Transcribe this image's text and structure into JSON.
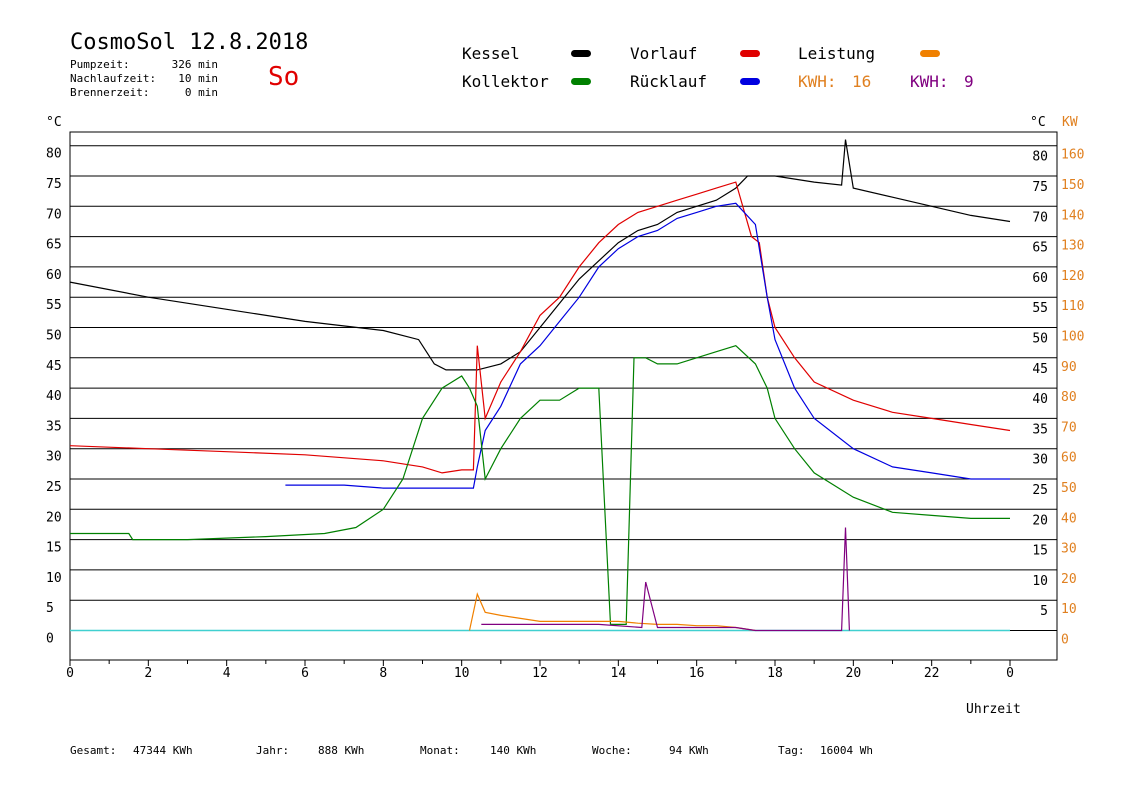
{
  "header": {
    "title": "CosmoSol 12.8.2018",
    "day": "So",
    "stats": [
      {
        "label": "Pumpzeit:",
        "value": "326 min"
      },
      {
        "label": "Nachlaufzeit:",
        "value": "10 min"
      },
      {
        "label": "Brennerzeit:",
        "value": "0 min"
      }
    ]
  },
  "legend": {
    "kessel": {
      "label": "Kessel",
      "color": "#000000"
    },
    "vorlauf": {
      "label": "Vorlauf",
      "color": "#e00000"
    },
    "leistung": {
      "label": "Leistung",
      "color": "#f08000"
    },
    "kollektor": {
      "label": "Kollektor",
      "color": "#008000"
    },
    "ruecklauf": {
      "label": "Rücklauf",
      "color": "#0000e0"
    },
    "kwh_orange": {
      "label": "KWH:",
      "value": "16",
      "color": "#e08020"
    },
    "kwh_purple": {
      "label": "KWH:",
      "value": "9",
      "color": "#800080"
    }
  },
  "axes": {
    "left_unit": "°C",
    "right_unit": "°C",
    "right_unit2": "KW",
    "xlabel": "Uhrzeit"
  },
  "footer": {
    "gesamt": {
      "label": "Gesamt:",
      "value": "47344 KWh"
    },
    "jahr": {
      "label": "Jahr:",
      "value": "888 KWh"
    },
    "monat": {
      "label": "Monat:",
      "value": "140 KWh"
    },
    "woche": {
      "label": "Woche:",
      "value": "94 KWh"
    },
    "tag": {
      "label": "Tag:",
      "value": "16004 Wh"
    }
  },
  "chart_data": {
    "type": "line",
    "title": "CosmoSol 12.8.2018",
    "xlabel": "Uhrzeit",
    "ylabel": "°C",
    "ylabel_right": "KW",
    "x_ticks": [
      "0",
      "2",
      "4",
      "6",
      "8",
      "10",
      "12",
      "14",
      "16",
      "18",
      "20",
      "22",
      "0"
    ],
    "xlim": [
      0,
      24
    ],
    "ylim": [
      -5,
      85
    ],
    "y_ticks_left": [
      "80",
      "75",
      "70",
      "65",
      "60",
      "55",
      "50",
      "45",
      "40",
      "35",
      "30",
      "25",
      "20",
      "15",
      "10",
      "5",
      "0"
    ],
    "y_ticks_right_temp": [
      "80",
      "75",
      "70",
      "65",
      "60",
      "55",
      "50",
      "45",
      "40",
      "35",
      "30",
      "25",
      "20",
      "15",
      "10",
      "5"
    ],
    "y_ticks_right_kw": [
      "160",
      "150",
      "140",
      "130",
      "120",
      "110",
      "100",
      "90",
      "80",
      "70",
      "60",
      "50",
      "40",
      "30",
      "20",
      "10",
      "0"
    ],
    "grid": true,
    "legend_position": "top",
    "series": [
      {
        "name": "Kessel",
        "color": "#000000",
        "x": [
          0,
          2,
          4,
          6,
          8,
          8.9,
          9.1,
          9.3,
          9.6,
          10,
          10.4,
          11,
          11.5,
          12,
          12.5,
          13,
          13.5,
          14,
          14.5,
          15,
          15.5,
          16,
          16.5,
          17,
          17.3,
          17.6,
          18,
          19,
          19.7,
          19.8,
          20,
          21,
          22,
          23,
          24
        ],
        "y": [
          57.5,
          55,
          53,
          51,
          49.5,
          48,
          46,
          44,
          43,
          43,
          43,
          44,
          46,
          50,
          54,
          58,
          61,
          64,
          66,
          67,
          69,
          70,
          71,
          73,
          75,
          75,
          75,
          74,
          73.5,
          81,
          73,
          71.5,
          70,
          68.5,
          67.5
        ]
      },
      {
        "name": "Vorlauf",
        "color": "#e00000",
        "x": [
          0,
          2,
          4,
          6,
          8,
          9,
          9.5,
          10,
          10.3,
          10.4,
          10.6,
          11,
          11.5,
          12,
          12.5,
          13,
          13.5,
          14,
          14.5,
          15,
          15.5,
          16,
          16.5,
          17,
          17.4,
          17.6,
          17.8,
          18,
          18.5,
          19,
          20,
          21,
          22,
          23,
          24
        ],
        "y": [
          30.5,
          30,
          29.5,
          29,
          28,
          27,
          26,
          26.5,
          26.5,
          47,
          35,
          41,
          46,
          52,
          55,
          60,
          64,
          67,
          69,
          70,
          71,
          72,
          73,
          74,
          65,
          64,
          55,
          50,
          45,
          41,
          38,
          36,
          35,
          34,
          33
        ]
      },
      {
        "name": "Rücklauf",
        "color": "#0000e0",
        "x": [
          5.5,
          7,
          8,
          9,
          10,
          10.3,
          10.4,
          10.6,
          11,
          11.5,
          12,
          12.5,
          13,
          13.5,
          14,
          14.5,
          15,
          15.5,
          16,
          16.5,
          17,
          17.5,
          17.8,
          18,
          18.5,
          19,
          20,
          21,
          22,
          23,
          24
        ],
        "y": [
          24,
          24,
          23.5,
          23.5,
          23.5,
          23.5,
          27,
          33,
          37,
          44,
          47,
          51,
          55,
          60,
          63,
          65,
          66,
          68,
          69,
          70,
          70.5,
          67,
          55,
          48,
          40,
          35,
          30,
          27,
          26,
          25,
          25
        ]
      },
      {
        "name": "Kollektor",
        "color": "#008000",
        "x": [
          0,
          1.5,
          1.6,
          3,
          5,
          6.5,
          7.3,
          8,
          8.5,
          9,
          9.5,
          10,
          10.2,
          10.4,
          10.6,
          11,
          11.5,
          12,
          12.5,
          13,
          13.5,
          13.8,
          14.0,
          14.2,
          14.4,
          14.7,
          15,
          15.5,
          16,
          16.5,
          17,
          17.5,
          17.8,
          18,
          18.5,
          19,
          20,
          21,
          22,
          23,
          24
        ],
        "y": [
          16,
          16,
          15,
          15,
          15.5,
          16,
          17,
          20,
          25,
          35,
          40,
          42,
          40,
          37,
          25,
          30,
          35,
          38,
          38,
          40,
          40,
          1,
          1,
          1,
          45,
          45,
          44,
          44,
          45,
          46,
          47,
          44,
          40,
          35,
          30,
          26,
          22,
          19.5,
          19,
          18.5,
          18.5
        ]
      },
      {
        "name": "Leistung",
        "color": "#f08000",
        "x": [
          10.2,
          10.4,
          10.6,
          11,
          11.5,
          12,
          12.5,
          13,
          13.5,
          14,
          14.5,
          15,
          15.5,
          16,
          16.5,
          17,
          17.5
        ],
        "y": [
          0,
          6,
          3,
          2.5,
          2,
          1.5,
          1.5,
          1.5,
          1.5,
          1.5,
          1.2,
          1,
          1,
          0.8,
          0.8,
          0.5,
          0
        ]
      },
      {
        "name": "KWH",
        "color": "#800080",
        "x": [
          10.5,
          12,
          13.5,
          14.6,
          14.7,
          15,
          16,
          17,
          17.5,
          19.7,
          19.8,
          19.9
        ],
        "y": [
          1,
          1,
          1,
          0.5,
          8,
          0.5,
          0.5,
          0.5,
          0,
          0,
          17,
          0
        ]
      }
    ]
  }
}
